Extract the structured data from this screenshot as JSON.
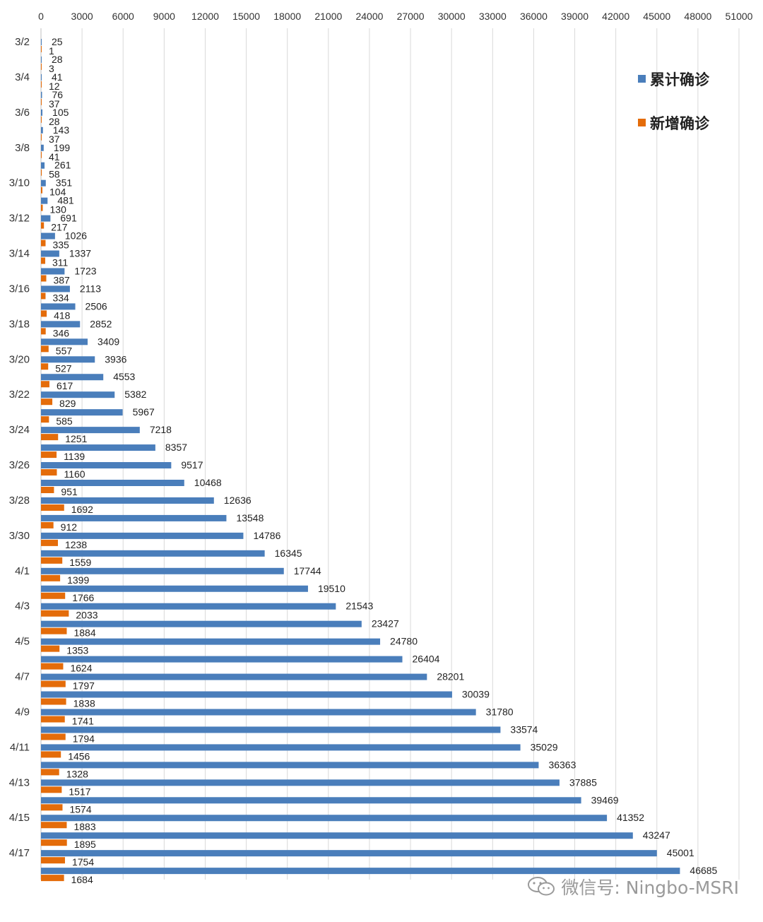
{
  "chart_data": {
    "type": "bar",
    "orientation": "horizontal",
    "title": "",
    "xlabel": "",
    "ylabel": "",
    "xlim": [
      0,
      51000
    ],
    "x_ticks": [
      0,
      3000,
      6000,
      9000,
      12000,
      15000,
      18000,
      21000,
      24000,
      27000,
      30000,
      33000,
      36000,
      39000,
      42000,
      45000,
      48000,
      51000
    ],
    "x_tick_labels": [
      "0",
      "3000",
      "6000",
      "9000",
      "12000",
      "15000",
      "18000",
      "21000",
      "24000",
      "27000",
      "30000",
      "33000",
      "36000",
      "39000",
      "42000",
      "45000",
      "48000",
      "51000"
    ],
    "axis_position": "top",
    "grid": true,
    "legend_position": "top-right",
    "categories": [
      "3/2",
      "3/3",
      "3/4",
      "3/5",
      "3/6",
      "3/7",
      "3/8",
      "3/9",
      "3/10",
      "3/11",
      "3/12",
      "3/13",
      "3/14",
      "3/15",
      "3/16",
      "3/17",
      "3/18",
      "3/19",
      "3/20",
      "3/21",
      "3/22",
      "3/23",
      "3/24",
      "3/25",
      "3/26",
      "3/27",
      "3/28",
      "3/29",
      "3/30",
      "3/31",
      "4/1",
      "4/2",
      "4/3",
      "4/4",
      "4/5",
      "4/6",
      "4/7",
      "4/8",
      "4/9",
      "4/10",
      "4/11",
      "4/12",
      "4/13",
      "4/14",
      "4/15",
      "4/16",
      "4/17",
      "4/18"
    ],
    "category_labels": [
      "3/2",
      "",
      "3/4",
      "",
      "3/6",
      "",
      "3/8",
      "",
      "3/10",
      "",
      "3/12",
      "",
      "3/14",
      "",
      "3/16",
      "",
      "3/18",
      "",
      "3/20",
      "",
      "3/22",
      "",
      "3/24",
      "",
      "3/26",
      "",
      "3/28",
      "",
      "3/30",
      "",
      "4/1",
      "",
      "4/3",
      "",
      "4/5",
      "",
      "4/7",
      "",
      "4/9",
      "",
      "4/11",
      "",
      "4/13",
      "",
      "4/15",
      "",
      "4/17",
      ""
    ],
    "series": [
      {
        "name": "累计确诊",
        "color": "#4a7ebb",
        "values": [
          25,
          28,
          41,
          76,
          105,
          143,
          199,
          261,
          351,
          481,
          691,
          1026,
          1337,
          1723,
          2113,
          2506,
          2852,
          3409,
          3936,
          4553,
          5382,
          5967,
          7218,
          8357,
          9517,
          10468,
          12636,
          13548,
          14786,
          16345,
          17744,
          19510,
          21543,
          23427,
          24780,
          26404,
          28201,
          30039,
          31780,
          33574,
          35029,
          36363,
          37885,
          39469,
          41352,
          43247,
          45001,
          46685
        ]
      },
      {
        "name": "新增确诊",
        "color": "#e46c0a",
        "values": [
          1,
          3,
          12,
          37,
          28,
          37,
          41,
          58,
          104,
          130,
          217,
          335,
          311,
          387,
          334,
          418,
          346,
          557,
          527,
          617,
          829,
          585,
          1251,
          1139,
          1160,
          951,
          1692,
          912,
          1238,
          1559,
          1399,
          1766,
          2033,
          1884,
          1353,
          1624,
          1797,
          1838,
          1741,
          1794,
          1456,
          1328,
          1517,
          1574,
          1883,
          1895,
          1754,
          1684
        ]
      }
    ]
  },
  "watermark": {
    "text": "微信号: Ningbo-MSRI",
    "icon": "wechat-icon"
  }
}
